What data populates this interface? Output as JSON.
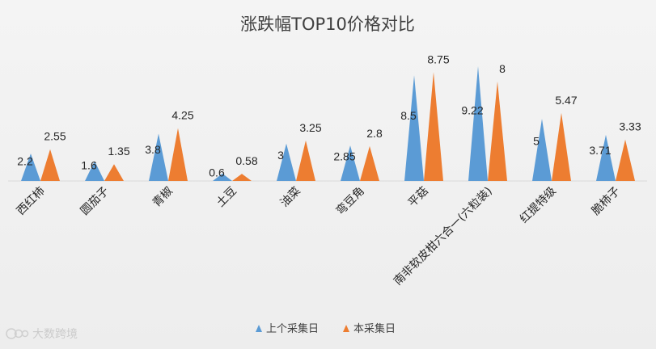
{
  "chart_data": {
    "type": "bar",
    "mark_shape": "triangle",
    "title": "涨跌幅TOP10价格对比",
    "categories": [
      "西红柿",
      "圆茄子",
      "青椒",
      "土豆",
      "油菜",
      "弯豆角",
      "平菇",
      "南非软皮柑六合一(六粒装)",
      "红提特级",
      "脆柿子"
    ],
    "series": [
      {
        "name": "上个采集日",
        "color": "#5B9BD5",
        "values": [
          2.2,
          1.6,
          3.8,
          0.6,
          3,
          2.85,
          8.5,
          9.22,
          5,
          3.71
        ]
      },
      {
        "name": "本采集日",
        "color": "#ED7D31",
        "values": [
          2.55,
          1.35,
          4.25,
          0.58,
          3.25,
          2.8,
          8.75,
          8,
          5.47,
          3.33
        ]
      }
    ],
    "data_labels": true,
    "ylim": [
      0,
      10
    ],
    "grid": false,
    "legend_position": "bottom"
  },
  "watermark": {
    "text": "大数跨境"
  }
}
